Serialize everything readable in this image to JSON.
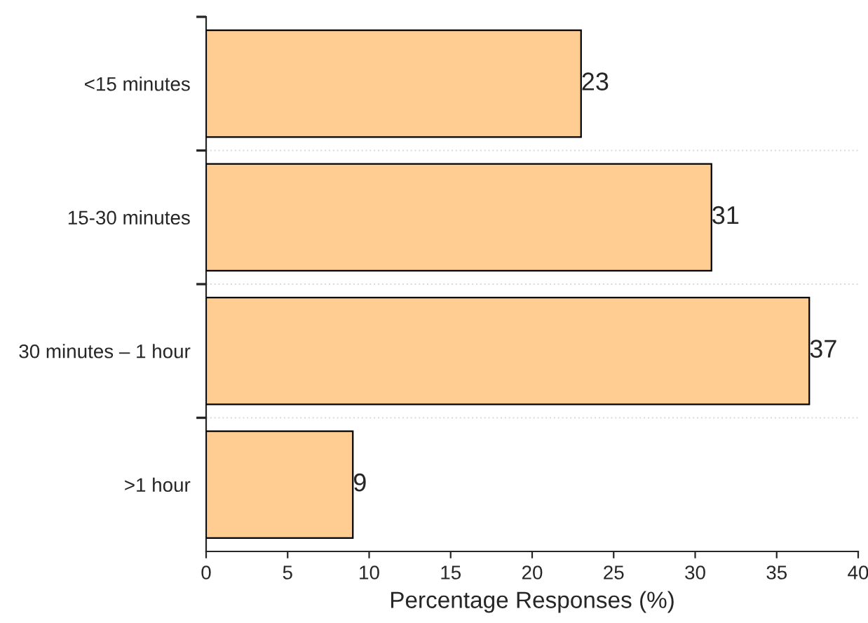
{
  "chart_data": {
    "type": "bar",
    "orientation": "horizontal",
    "xlabel": "Percentage Responses (%)",
    "categories": [
      "<15 minutes",
      "15-30 minutes",
      "30 minutes – 1 hour",
      ">1 hour"
    ],
    "values": [
      23,
      31,
      37,
      9
    ],
    "data_labels": true,
    "color": "#ffcc91",
    "xlim": [
      0,
      40
    ],
    "xticks": [
      0,
      5,
      10,
      15,
      20,
      25,
      30,
      35,
      40
    ],
    "grid": "y"
  }
}
